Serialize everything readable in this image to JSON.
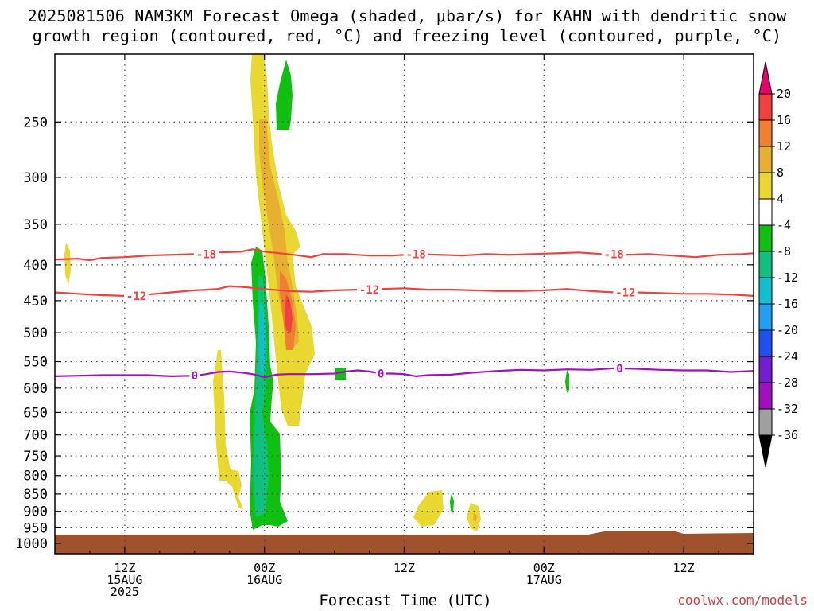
{
  "title_line1": "2025081506 NAM3KM Forecast Omega (shaded, μbar/s) for KAHN with dendritic snow",
  "title_line2": "growth region (contoured, red, °C) and freezing level (contoured, purple, °C)",
  "credit": "coolwx.com/models",
  "chart_data": {
    "type": "heatmap",
    "xlabel": "Forecast Time (UTC)",
    "x_ticks": [
      {
        "hour": 6,
        "lines": [
          "12Z",
          "15AUG",
          "2025"
        ]
      },
      {
        "hour": 18,
        "lines": [
          "00Z",
          "16AUG"
        ]
      },
      {
        "hour": 30,
        "lines": [
          "12Z"
        ]
      },
      {
        "hour": 42,
        "lines": [
          "00Z",
          "17AUG"
        ]
      },
      {
        "hour": 54,
        "lines": [
          "12Z"
        ]
      }
    ],
    "x_range": [
      0,
      60
    ],
    "y_ticks": [
      250,
      300,
      350,
      400,
      450,
      500,
      550,
      600,
      650,
      700,
      750,
      800,
      850,
      900,
      950,
      1000
    ],
    "y_range": [
      200,
      1000
    ],
    "y_scale": "log",
    "grid": true,
    "colorbar": {
      "labels": [
        "20",
        "16",
        "12",
        "8",
        "4",
        "-4",
        "-8",
        "-12",
        "-16",
        "-20",
        "-24",
        "-28",
        "-32",
        "-36"
      ],
      "colors": [
        "#e8006e",
        "#f04040",
        "#f08030",
        "#e8b030",
        "#e8d830",
        "#ffffff",
        "#10c010",
        "#10c080",
        "#10c0d0",
        "#20a0f0",
        "#2050f0",
        "#7020d0",
        "#a010c0",
        "#a0a0a0",
        "#000000"
      ]
    },
    "omega_colors": {
      "4": "#e8d830",
      "8": "#e8b030",
      "12": "#f08030",
      "16": "#f04040",
      "-4": "#10c010",
      "-8": "#10c080",
      "-12": "#10c0d0",
      "-16": "#20a0f0"
    },
    "contours": [
      {
        "label": "-18",
        "color": "#f04040",
        "points": [
          [
            0,
            393
          ],
          [
            2,
            392
          ],
          [
            3,
            394
          ],
          [
            4,
            391
          ],
          [
            6,
            390
          ],
          [
            8,
            388
          ],
          [
            10,
            387
          ],
          [
            12,
            386
          ],
          [
            14,
            384
          ],
          [
            16,
            383
          ],
          [
            17,
            380
          ],
          [
            18,
            383
          ],
          [
            20,
            386
          ],
          [
            21,
            388
          ],
          [
            22,
            390
          ],
          [
            23,
            386
          ],
          [
            25,
            386
          ],
          [
            27,
            388
          ],
          [
            29,
            388
          ],
          [
            31,
            386
          ],
          [
            33,
            387
          ],
          [
            35,
            388
          ],
          [
            37,
            386
          ],
          [
            39,
            387
          ],
          [
            41,
            386
          ],
          [
            43,
            385
          ],
          [
            45,
            384
          ],
          [
            47,
            386
          ],
          [
            49,
            387
          ],
          [
            51,
            386
          ],
          [
            53,
            388
          ],
          [
            55,
            390
          ],
          [
            57,
            387
          ],
          [
            59,
            386
          ],
          [
            60,
            385
          ]
        ],
        "label_hours": [
          13,
          31,
          48
        ]
      },
      {
        "label": "-12",
        "color": "#f04040",
        "points": [
          [
            0,
            438
          ],
          [
            2,
            440
          ],
          [
            4,
            442
          ],
          [
            6,
            443
          ],
          [
            8,
            441
          ],
          [
            10,
            438
          ],
          [
            12,
            435
          ],
          [
            14,
            433
          ],
          [
            15,
            429
          ],
          [
            16,
            430
          ],
          [
            18,
            433
          ],
          [
            20,
            436
          ],
          [
            22,
            437
          ],
          [
            24,
            435
          ],
          [
            26,
            434
          ],
          [
            28,
            433
          ],
          [
            30,
            432
          ],
          [
            32,
            434
          ],
          [
            34,
            434
          ],
          [
            36,
            435
          ],
          [
            38,
            436
          ],
          [
            40,
            436
          ],
          [
            42,
            435
          ],
          [
            44,
            433
          ],
          [
            46,
            436
          ],
          [
            48,
            438
          ],
          [
            50,
            438
          ],
          [
            52,
            439
          ],
          [
            54,
            440
          ],
          [
            56,
            440
          ],
          [
            58,
            441
          ],
          [
            60,
            443
          ]
        ],
        "label_hours": [
          7,
          27,
          49
        ]
      },
      {
        "label": "0",
        "color": "#a010c0",
        "points": [
          [
            0,
            577
          ],
          [
            2,
            576
          ],
          [
            4,
            575
          ],
          [
            6,
            575
          ],
          [
            8,
            575
          ],
          [
            10,
            577
          ],
          [
            12,
            576
          ],
          [
            13,
            573
          ],
          [
            14,
            569
          ],
          [
            15,
            568
          ],
          [
            16,
            570
          ],
          [
            17,
            573
          ],
          [
            18,
            579
          ],
          [
            19,
            574
          ],
          [
            20,
            573
          ],
          [
            22,
            573
          ],
          [
            24,
            572
          ],
          [
            25,
            568
          ],
          [
            26,
            566
          ],
          [
            27,
            568
          ],
          [
            28,
            572
          ],
          [
            29,
            572
          ],
          [
            30,
            573
          ],
          [
            31,
            577
          ],
          [
            32,
            575
          ],
          [
            34,
            574
          ],
          [
            36,
            570
          ],
          [
            38,
            567
          ],
          [
            40,
            565
          ],
          [
            42,
            566
          ],
          [
            44,
            564
          ],
          [
            46,
            565
          ],
          [
            48,
            562
          ],
          [
            50,
            563
          ],
          [
            52,
            565
          ],
          [
            54,
            566
          ],
          [
            56,
            566
          ],
          [
            58,
            569
          ],
          [
            60,
            567
          ]
        ],
        "label_hours": [
          12,
          28,
          48.5
        ]
      }
    ]
  }
}
